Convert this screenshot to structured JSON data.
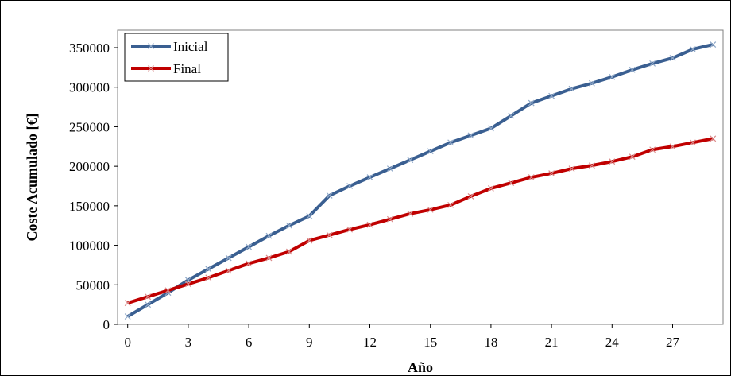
{
  "chart_data": {
    "type": "line",
    "xlabel": "Año",
    "ylabel": "Coste Acumulado [€]",
    "xlim": [
      -0.5,
      29.5
    ],
    "ylim": [
      0,
      350000
    ],
    "xticks": [
      0,
      3,
      6,
      9,
      12,
      15,
      18,
      21,
      24,
      27
    ],
    "yticks": [
      0,
      50000,
      100000,
      150000,
      200000,
      250000,
      300000,
      350000
    ],
    "xtick_labels": [
      "0",
      "3",
      "6",
      "9",
      "12",
      "15",
      "18",
      "21",
      "24",
      "27"
    ],
    "ytick_labels": [
      "0",
      "50000",
      "100000",
      "150000",
      "200000",
      "250000",
      "300000",
      "350000"
    ],
    "grid": false,
    "legend_position": "top-left",
    "x": [
      0,
      1,
      2,
      3,
      4,
      5,
      6,
      7,
      8,
      9,
      10,
      11,
      12,
      13,
      14,
      15,
      16,
      17,
      18,
      19,
      20,
      21,
      22,
      23,
      24,
      25,
      26,
      27,
      28,
      29
    ],
    "series": [
      {
        "name": "Inicial",
        "color": "#3a5f91",
        "marker_color": "#8fa8c8",
        "values": [
          10000,
          25000,
          40000,
          56000,
          70000,
          84000,
          98000,
          112000,
          125000,
          137000,
          163000,
          175000,
          186000,
          197000,
          208000,
          219000,
          230000,
          239000,
          248000,
          264000,
          280000,
          289000,
          298000,
          305000,
          313000,
          322000,
          330000,
          337000,
          348000,
          354000
        ]
      },
      {
        "name": "Final",
        "color": "#c00000",
        "marker_color": "#d98a8a",
        "values": [
          27000,
          35000,
          43000,
          51000,
          59000,
          68000,
          77000,
          84000,
          92000,
          106000,
          113000,
          120000,
          126000,
          133000,
          140000,
          145000,
          151000,
          162000,
          172000,
          179000,
          186000,
          191000,
          197000,
          201000,
          206000,
          212000,
          221000,
          225000,
          230000,
          235000
        ]
      }
    ]
  }
}
